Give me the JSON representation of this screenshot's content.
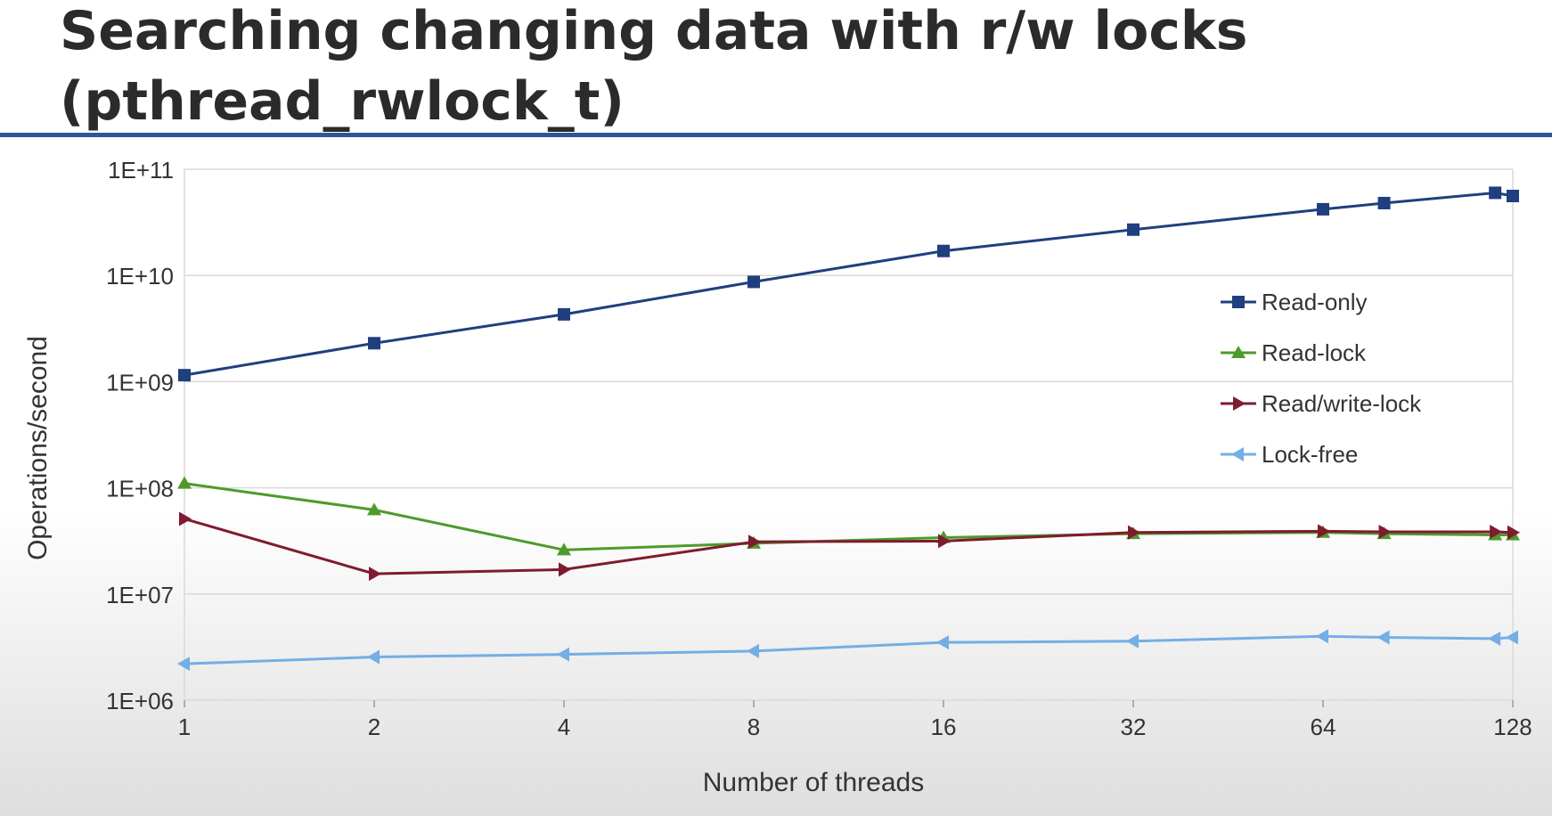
{
  "title": {
    "line1": "Searching changing data with r/w locks",
    "line2": "(pthread_rwlock_t)"
  },
  "colors": {
    "title": "#2b2b2b",
    "rule": "#2f5597",
    "grid": "#d9d9d9",
    "axis_text": "#333333"
  },
  "chart_data": {
    "type": "line",
    "xlabel": "Number of threads",
    "ylabel": "Operations/second",
    "x_scale": "log2",
    "y_scale": "log10",
    "xlim": [
      1,
      128
    ],
    "ylim": [
      1000000,
      100000000000
    ],
    "x_ticks": [
      1,
      2,
      4,
      8,
      16,
      32,
      64,
      128
    ],
    "x_tick_labels": [
      "1",
      "2",
      "4",
      "8",
      "16",
      "32",
      "64",
      "128"
    ],
    "y_ticks": [
      1000000,
      10000000,
      100000000,
      1000000000,
      10000000000,
      100000000000
    ],
    "y_tick_labels": [
      "1E+06",
      "1E+07",
      "1E+08",
      "1E+09",
      "1E+10",
      "1E+11"
    ],
    "grid": "horizontal",
    "legend_position": "right",
    "series": [
      {
        "name": "Read-only",
        "color": "#1f3f7f",
        "marker": "square",
        "x": [
          1,
          2,
          4,
          8,
          16,
          32,
          64,
          80,
          120,
          128
        ],
        "y": [
          1150000000,
          2300000000,
          4300000000,
          8700000000,
          17000000000,
          27000000000,
          42000000000,
          48000000000,
          60000000000,
          56000000000
        ]
      },
      {
        "name": "Read-lock",
        "color": "#4e9a2a",
        "marker": "triangle-up",
        "x": [
          1,
          2,
          4,
          8,
          16,
          32,
          64,
          80,
          120,
          128
        ],
        "y": [
          110000000,
          62000000,
          26000000,
          30000000,
          34000000,
          37000000,
          38000000,
          37000000,
          36000000,
          36000000
        ]
      },
      {
        "name": "Read/write-lock",
        "color": "#7f1b2e",
        "marker": "triangle-right",
        "x": [
          1,
          2,
          4,
          8,
          16,
          32,
          64,
          80,
          120,
          128
        ],
        "y": [
          51000000,
          15500000,
          17000000,
          31000000,
          31500000,
          38000000,
          39000000,
          38500000,
          38500000,
          38000000
        ]
      },
      {
        "name": "Lock-free",
        "color": "#74aee6",
        "marker": "triangle-left",
        "x": [
          1,
          2,
          4,
          8,
          16,
          32,
          64,
          80,
          120,
          128
        ],
        "y": [
          2200000,
          2550000,
          2700000,
          2900000,
          3500000,
          3600000,
          4000000,
          3900000,
          3800000,
          3900000
        ]
      }
    ]
  }
}
